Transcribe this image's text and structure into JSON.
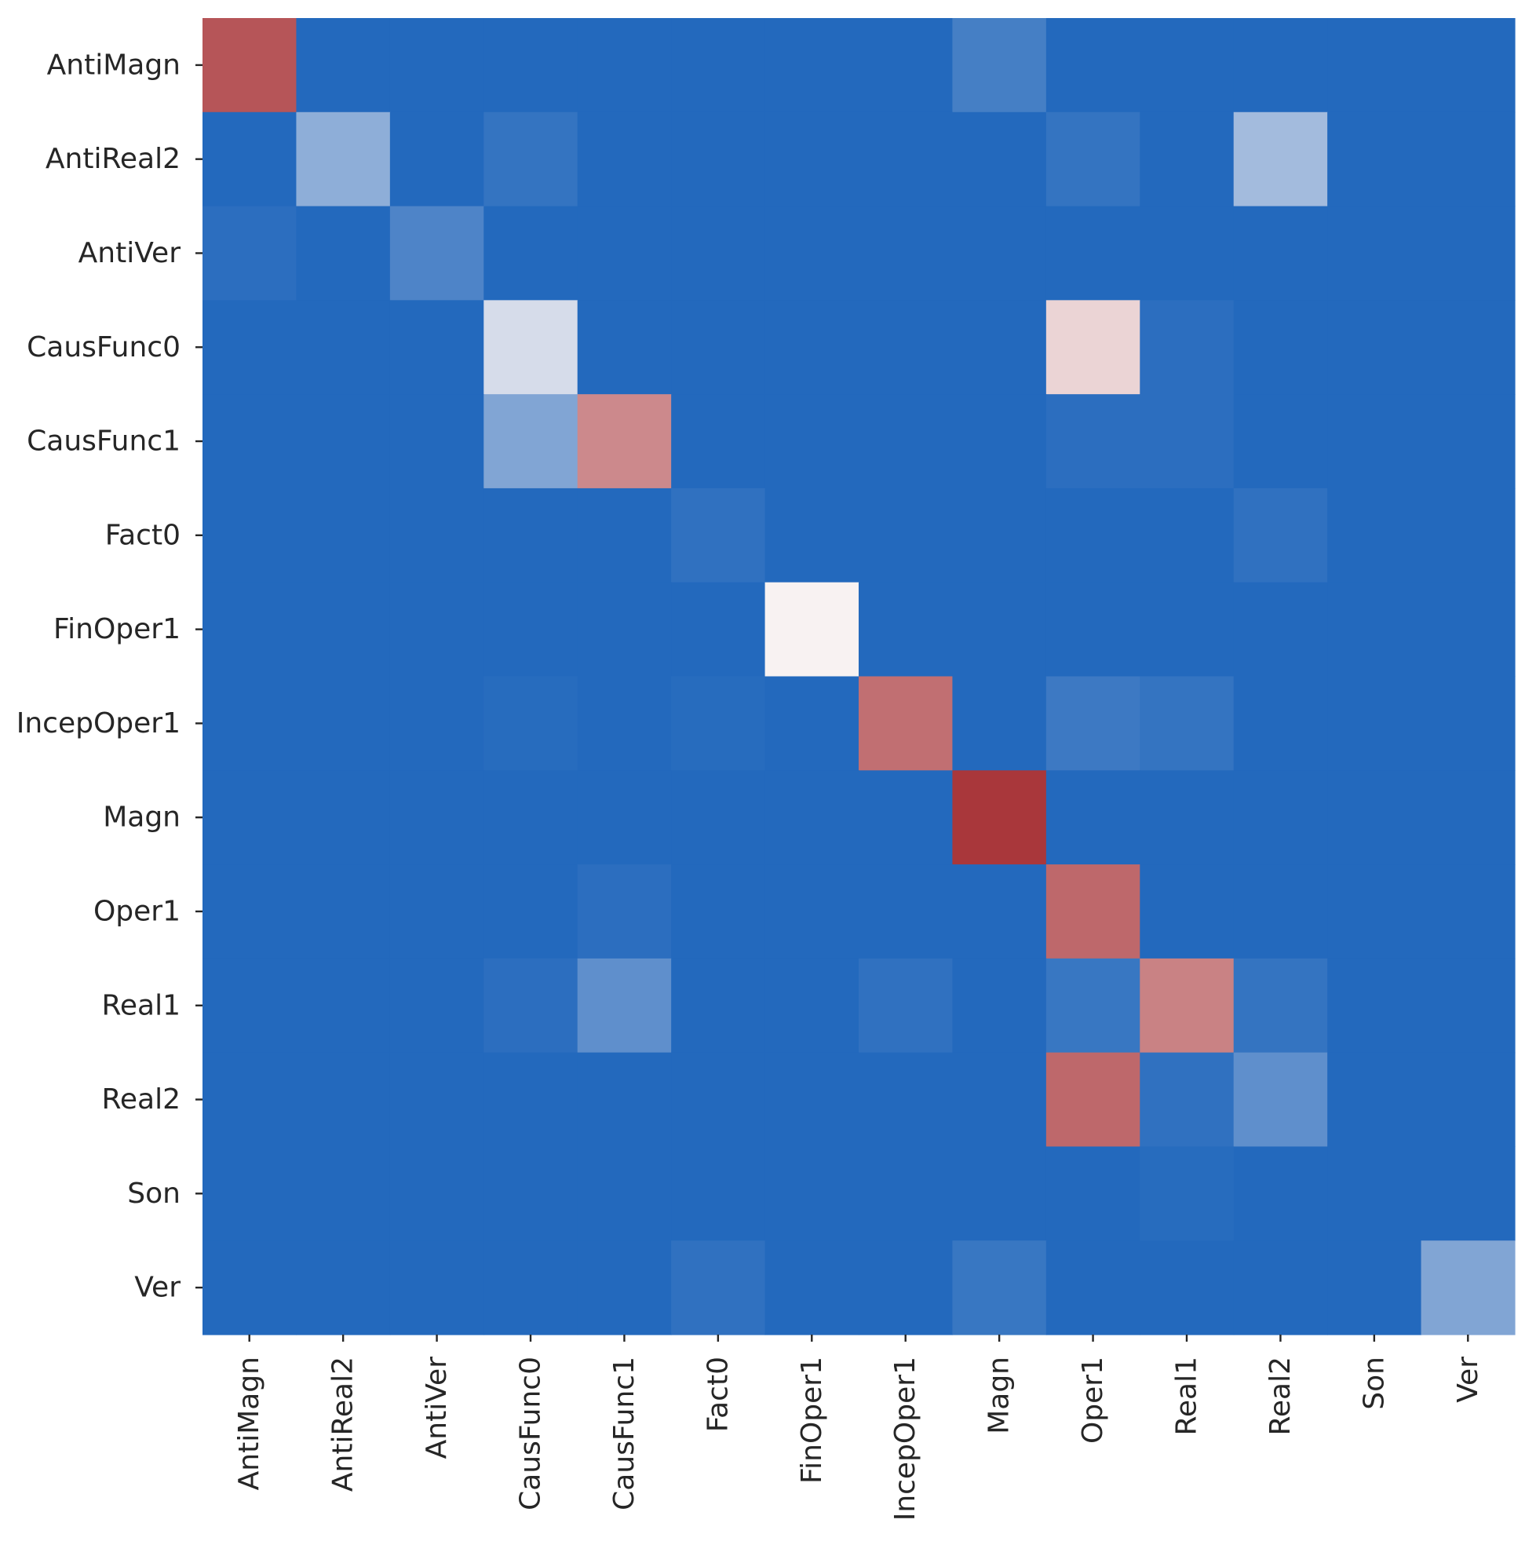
{
  "chart_data": {
    "type": "heatmap",
    "title": "",
    "xlabel": "",
    "ylabel": "",
    "colormap": "coolwarm",
    "colors": {
      "low": "#2369bd",
      "mid": "#f8f2f2",
      "high": "#a9373b"
    },
    "value_range": [
      0,
      1
    ],
    "colorbar": false,
    "grid": false,
    "categories_x": [
      "AntiMagn",
      "AntiReal2",
      "AntiVer",
      "CausFunc0",
      "CausFunc1",
      "Fact0",
      "FinOper1",
      "IncepOper1",
      "Magn",
      "Oper1",
      "Real1",
      "Real2",
      "Son",
      "Ver"
    ],
    "categories_y": [
      "AntiMagn",
      "AntiReal2",
      "AntiVer",
      "CausFunc0",
      "CausFunc1",
      "Fact0",
      "FinOper1",
      "IncepOper1",
      "Magn",
      "Oper1",
      "Real1",
      "Real2",
      "Son",
      "Ver"
    ],
    "values": [
      [
        0.92,
        0.0,
        0.0,
        0.0,
        0.0,
        0.0,
        0.0,
        0.0,
        0.08,
        0.0,
        0.0,
        0.0,
        0.0,
        0.0
      ],
      [
        0.0,
        0.25,
        0.0,
        0.04,
        0.0,
        0.0,
        0.0,
        0.0,
        0.0,
        0.04,
        0.0,
        0.3,
        0.0,
        0.0
      ],
      [
        0.02,
        0.0,
        0.1,
        0.0,
        0.0,
        0.0,
        0.0,
        0.0,
        0.0,
        0.0,
        0.0,
        0.0,
        0.0,
        0.0
      ],
      [
        0.0,
        0.0,
        0.0,
        0.42,
        0.0,
        0.0,
        0.0,
        0.0,
        0.0,
        0.58,
        0.02,
        0.0,
        0.0,
        0.0
      ],
      [
        0.0,
        0.0,
        0.0,
        0.22,
        0.78,
        0.0,
        0.0,
        0.0,
        0.0,
        0.02,
        0.02,
        0.0,
        0.0,
        0.0
      ],
      [
        0.0,
        0.0,
        0.0,
        0.0,
        0.0,
        0.03,
        0.0,
        0.0,
        0.0,
        0.0,
        0.0,
        0.03,
        0.0,
        0.0
      ],
      [
        0.0,
        0.0,
        0.0,
        0.0,
        0.0,
        0.0,
        0.5,
        0.0,
        0.0,
        0.0,
        0.0,
        0.0,
        0.0,
        0.0
      ],
      [
        0.0,
        0.0,
        0.0,
        0.01,
        0.0,
        0.01,
        0.0,
        0.85,
        0.0,
        0.06,
        0.04,
        0.0,
        0.0,
        0.0
      ],
      [
        0.0,
        0.0,
        0.0,
        0.0,
        0.0,
        0.0,
        0.0,
        0.0,
        1.0,
        0.0,
        0.0,
        0.0,
        0.0,
        0.0
      ],
      [
        0.0,
        0.0,
        0.0,
        0.0,
        0.02,
        0.0,
        0.0,
        0.0,
        0.0,
        0.87,
        0.0,
        0.0,
        0.0,
        0.0
      ],
      [
        0.0,
        0.0,
        0.0,
        0.02,
        0.14,
        0.0,
        0.0,
        0.03,
        0.0,
        0.05,
        0.8,
        0.04,
        0.0,
        0.0
      ],
      [
        0.0,
        0.0,
        0.0,
        0.0,
        0.0,
        0.0,
        0.0,
        0.0,
        0.0,
        0.87,
        0.03,
        0.14,
        0.0,
        0.0
      ],
      [
        0.0,
        0.0,
        0.0,
        0.0,
        0.0,
        0.0,
        0.0,
        0.0,
        0.0,
        0.0,
        0.01,
        0.0,
        0.0,
        0.0
      ],
      [
        0.0,
        0.0,
        0.0,
        0.0,
        0.0,
        0.03,
        0.0,
        0.0,
        0.05,
        0.0,
        0.0,
        0.0,
        0.0,
        0.22
      ]
    ]
  }
}
